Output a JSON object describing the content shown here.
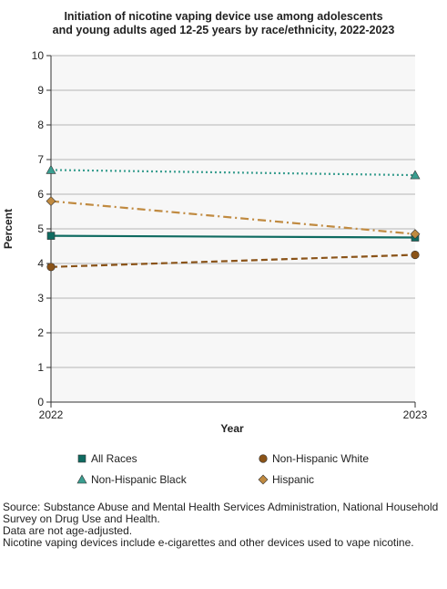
{
  "chart_data": {
    "type": "line",
    "title_line1": "Initiation of nicotine vaping device use among adolescents",
    "title_line2": "and young adults aged 12-25 years by race/ethnicity, 2022-2023",
    "xlabel": "Year",
    "ylabel": "Percent",
    "x": [
      "2022",
      "2023"
    ],
    "ylim": [
      0,
      10
    ],
    "yticks": [
      0,
      1,
      2,
      3,
      4,
      5,
      6,
      7,
      8,
      9,
      10
    ],
    "grid": true,
    "legend_position": "bottom",
    "series": [
      {
        "name": "All Races",
        "values": [
          4.8,
          4.75
        ],
        "color": "#0f6b61",
        "style": "solid",
        "marker": "square"
      },
      {
        "name": "Non-Hispanic White",
        "values": [
          3.9,
          4.25
        ],
        "color": "#8a5318",
        "style": "dashed",
        "marker": "circle"
      },
      {
        "name": "Non-Hispanic Black",
        "values": [
          6.7,
          6.55
        ],
        "color": "#3a9e90",
        "style": "dotted",
        "marker": "triangle"
      },
      {
        "name": "Hispanic",
        "values": [
          5.8,
          4.85
        ],
        "color": "#c08a40",
        "style": "dashdot",
        "marker": "diamond"
      }
    ]
  },
  "notes": {
    "source": "Source: Substance Abuse and Mental Health Services Administration, National Household Survey on Drug Use and Health.",
    "age": "Data are not age-adjusted.",
    "definition": "Nicotine vaping devices include e-cigarettes and other devices used to vape nicotine."
  }
}
